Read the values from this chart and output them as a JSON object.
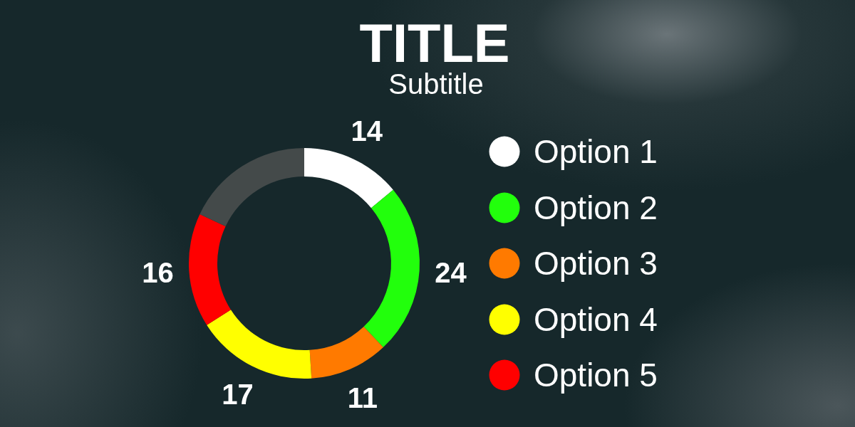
{
  "chart_data": {
    "type": "donut",
    "title": "TITLE",
    "subtitle": "Subtitle",
    "categories": [
      "Option 1",
      "Option 2",
      "Option 3",
      "Option 4",
      "Option 5",
      null
    ],
    "values": [
      14,
      24,
      11,
      17,
      16,
      18
    ],
    "colors": [
      "#ffffff",
      "#22ff0c",
      "#ff7a00",
      "#ffff00",
      "#ff0000",
      "#444a4a"
    ],
    "value_labels": [
      "14",
      "24",
      "11",
      "17",
      "16",
      null
    ],
    "legend": "right"
  }
}
